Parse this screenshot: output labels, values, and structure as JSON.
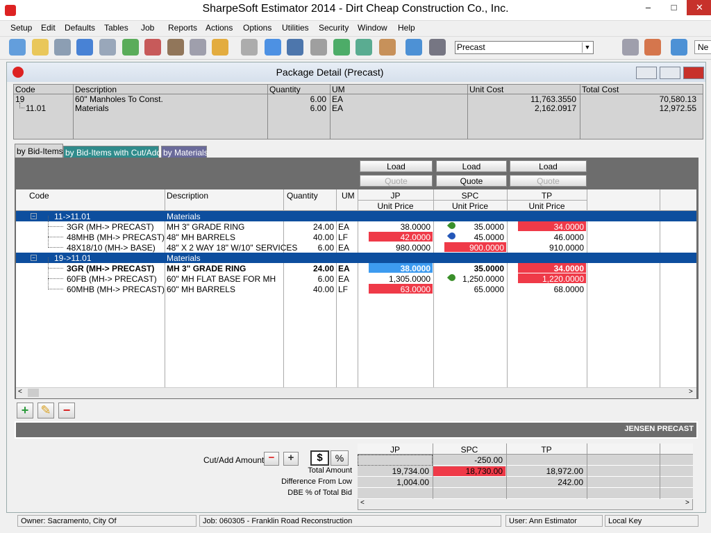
{
  "app_title": "SharpeSoft Estimator 2014 - Dirt Cheap Construction Co., Inc.",
  "menu": [
    "Setup",
    "Edit",
    "Defaults",
    "Tables",
    "Job",
    "Reports",
    "Actions",
    "Options",
    "Utilities",
    "Security",
    "Window",
    "Help"
  ],
  "toolbar": {
    "combo": "Precast",
    "clipped_button": "Ne"
  },
  "window_title": "Package Detail (Precast)",
  "header_table": {
    "columns": [
      "Code",
      "Description",
      "Quantity",
      "UM",
      "Unit Cost",
      "Total Cost"
    ],
    "rows": [
      [
        "19",
        "60\" Manholes To Const.",
        "6.00",
        "EA",
        "11,763.3550",
        "70,580.13"
      ],
      [
        "11.01",
        "Materials",
        "6.00",
        "EA",
        "2,162.0917",
        "12,972.55"
      ]
    ]
  },
  "tabs": [
    "by Bid-Items",
    "by Bid-Items with Cut/Adds",
    "by Materials"
  ],
  "vendor_buttons": {
    "load": "Load",
    "quote": "Quote"
  },
  "grid": {
    "columns": [
      "Code",
      "Description",
      "Quantity",
      "UM"
    ],
    "vendors": [
      "JP",
      "SPC",
      "TP"
    ],
    "subheader": "Unit Price",
    "groups": [
      {
        "code": "11->11.01",
        "description": "Materials",
        "rows": [
          {
            "code": "3GR (MH-> PRECAST)",
            "description": "MH 3\" GRADE RING",
            "quantity": "24.00",
            "um": "EA",
            "prices": [
              {
                "value": "38.0000"
              },
              {
                "value": "35.0000",
                "pin": "#3a8f2a"
              },
              {
                "value": "34.0000",
                "fill": "#ef3a48"
              }
            ]
          },
          {
            "code": "48MHB (MH-> PRECAST)",
            "description": "48\" MH BARRELS",
            "quantity": "40.00",
            "um": "LF",
            "prices": [
              {
                "value": "42.0000",
                "fill": "#ef3a48"
              },
              {
                "value": "45.0000",
                "pin": "#2457b8"
              },
              {
                "value": "46.0000"
              }
            ]
          },
          {
            "code": "48X18/10 (MH-> BASE)",
            "description": "48\" X 2 WAY 18\" W/10\" SERVICES",
            "quantity": "6.00",
            "um": "EA",
            "prices": [
              {
                "value": "980.0000"
              },
              {
                "value": "900.0000",
                "fill": "#ef3a48"
              },
              {
                "value": "910.0000"
              }
            ]
          }
        ]
      },
      {
        "code": "19->11.01",
        "description": "Materials",
        "rows": [
          {
            "code": "3GR (MH-> PRECAST)",
            "description": "MH 3\" GRADE RING",
            "quantity": "24.00",
            "um": "EA",
            "bold": true,
            "prices": [
              {
                "value": "38.0000",
                "fill": "#3d9bf0"
              },
              {
                "value": "35.0000"
              },
              {
                "value": "34.0000",
                "fill": "#ef3a48"
              }
            ]
          },
          {
            "code": "60FB (MH-> PRECAST)",
            "description": "60\" MH FLAT BASE FOR MH",
            "quantity": "6.00",
            "um": "EA",
            "prices": [
              {
                "value": "1,305.0000"
              },
              {
                "value": "1,250.0000",
                "pin": "#3a8f2a"
              },
              {
                "value": "1,220.0000",
                "fill": "#ef3a48"
              }
            ]
          },
          {
            "code": "60MHB (MH-> PRECAST)",
            "description": "60\" MH BARRELS",
            "quantity": "40.00",
            "um": "LF",
            "prices": [
              {
                "value": "63.0000",
                "fill": "#ef3a48"
              },
              {
                "value": "65.0000"
              },
              {
                "value": "68.0000"
              }
            ]
          }
        ]
      }
    ]
  },
  "vendor_name": "JENSEN PRECAST",
  "summary": {
    "cut_add_label": "Cut/Add Amount",
    "dollar": "$",
    "percent": "%",
    "vendors": [
      "JP",
      "SPC",
      "TP"
    ],
    "rows": [
      {
        "cells": [
          null,
          {
            "value": "-250.00"
          },
          null
        ]
      },
      {
        "label": "Total Amount",
        "cells": [
          {
            "value": "19,734.00"
          },
          {
            "value": "18,730.00",
            "fill": "#ef3a48"
          },
          {
            "value": "18,972.00"
          }
        ]
      },
      {
        "label": "Difference From Low",
        "cells": [
          {
            "value": "1,004.00"
          },
          null,
          {
            "value": "242.00"
          }
        ]
      },
      {
        "label": "DBE % of Total Bid",
        "cells": [
          null,
          null,
          null
        ]
      }
    ]
  },
  "status": [
    "Owner: Sacramento, City Of",
    "Job: 060305 - Franklin Road Reconstruction",
    "User: Ann Estimator",
    "Local Key"
  ]
}
